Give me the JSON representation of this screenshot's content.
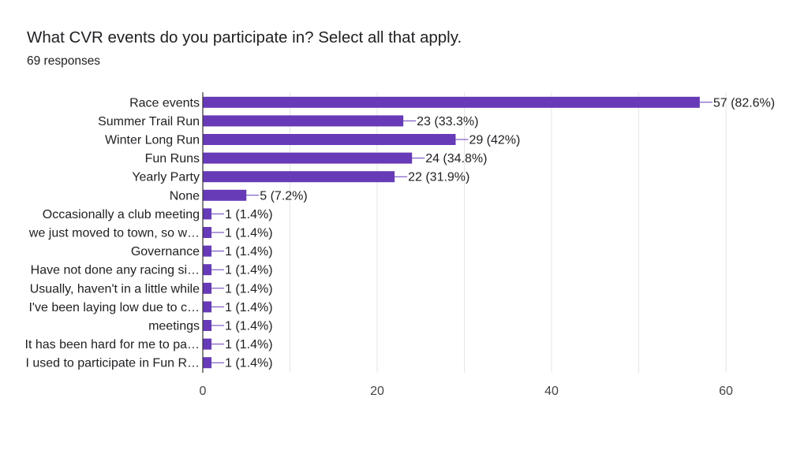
{
  "header": {
    "title": "What CVR events do you participate in? Select all that apply.",
    "responses": "69 responses"
  },
  "colors": {
    "bar": "#673ab7",
    "grid": "#e6e6e6",
    "axis": "#333333",
    "leader": "#673ab7"
  },
  "chart_data": {
    "type": "bar",
    "orientation": "horizontal",
    "title": "What CVR events do you participate in? Select all that apply.",
    "subtitle": "69 responses",
    "categories": [
      "Race events",
      "Summer Trail Run",
      "Winter Long Run",
      "Fun Runs",
      "Yearly Party",
      "None",
      "Occasionally a club meeting",
      "we just moved to town, so w…",
      "Governance",
      "Have not done any racing si…",
      "Usually, haven't in a little while",
      "I've been laying low due to c…",
      "meetings",
      "It has been hard for me to pa…",
      "I used to participate in Fun R…"
    ],
    "values": [
      57,
      23,
      29,
      24,
      22,
      5,
      1,
      1,
      1,
      1,
      1,
      1,
      1,
      1,
      1
    ],
    "value_labels": [
      "57 (82.6%)",
      "23 (33.3%)",
      "29 (42%)",
      "24 (34.8%)",
      "22 (31.9%)",
      "5 (7.2%)",
      "1 (1.4%)",
      "1 (1.4%)",
      "1 (1.4%)",
      "1 (1.4%)",
      "1 (1.4%)",
      "1 (1.4%)",
      "1 (1.4%)",
      "1 (1.4%)",
      "1 (1.4%)"
    ],
    "xlim": [
      0,
      60
    ],
    "xticks": [
      0,
      20,
      40,
      60
    ],
    "grid": true,
    "legend": "none"
  }
}
